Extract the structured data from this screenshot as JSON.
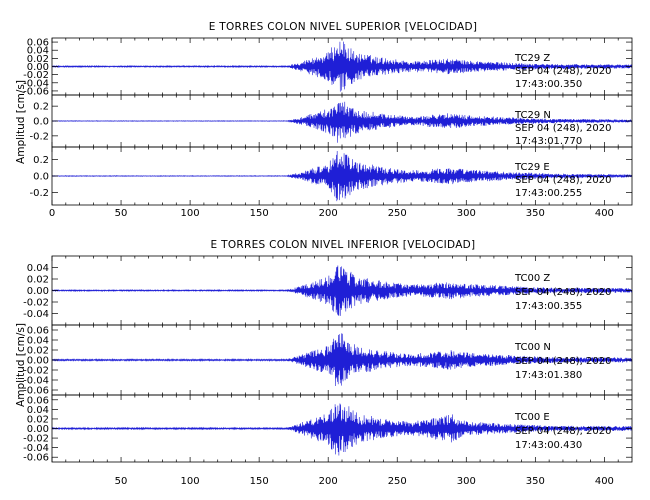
{
  "chart_data": [
    {
      "type": "line",
      "title": "E TORRES COLON NIVEL SUPERIOR [VELOCIDAD]",
      "ylabel": "Amplitud [cm/s]",
      "xlabel": "",
      "xlim": [
        0,
        420
      ],
      "xticks": [
        0,
        50,
        100,
        150,
        200,
        250,
        300,
        350,
        400
      ],
      "grid": false,
      "series_color": "#1f1fd6",
      "panels": [
        {
          "name": "TC29 Z",
          "station": "TC29",
          "component": "Z",
          "date": "SEP 04 (248), 2020",
          "time": "17:43:00.350",
          "ylim": [
            -0.07,
            0.07
          ],
          "yticks": [
            -0.06,
            -0.04,
            -0.02,
            0.0,
            0.02,
            0.04,
            0.06
          ],
          "ytick_labels": [
            "-0.06",
            "-0.04",
            "-0.02",
            "0.00",
            "0.02",
            "0.04",
            "0.06"
          ],
          "envelope": {
            "x": [
              0,
              170,
              180,
              200,
              207,
              212,
              220,
              240,
              260,
              290,
              300,
              330,
              360,
              420
            ],
            "y": [
              0.0015,
              0.0015,
              0.012,
              0.035,
              0.07,
              0.06,
              0.035,
              0.022,
              0.013,
              0.02,
              0.015,
              0.01,
              0.006,
              0.005
            ]
          }
        },
        {
          "name": "TC29 N",
          "station": "TC29",
          "component": "N",
          "date": "SEP 04 (248), 2020",
          "time": "17:43:01.770",
          "ylim": [
            -0.35,
            0.35
          ],
          "yticks": [
            -0.2,
            0.0,
            0.2
          ],
          "ytick_labels": [
            "-0.2",
            "0.0",
            "0.2"
          ],
          "envelope": {
            "x": [
              0,
              170,
              180,
              200,
              207,
              212,
              220,
              240,
              260,
              290,
              300,
              330,
              360,
              420
            ],
            "y": [
              0.004,
              0.004,
              0.05,
              0.17,
              0.3,
              0.26,
              0.17,
              0.1,
              0.06,
              0.11,
              0.08,
              0.05,
              0.03,
              0.02
            ]
          }
        },
        {
          "name": "TC29 E",
          "station": "TC29",
          "component": "E",
          "date": "SEP 04 (248), 2020",
          "time": "17:43:00.255",
          "ylim": [
            -0.35,
            0.35
          ],
          "yticks": [
            -0.2,
            0.0,
            0.2
          ],
          "ytick_labels": [
            "-0.2",
            "0.0",
            "0.2"
          ],
          "envelope": {
            "x": [
              0,
              170,
              180,
              200,
              207,
              212,
              220,
              240,
              260,
              290,
              300,
              330,
              360,
              420
            ],
            "y": [
              0.004,
              0.004,
              0.05,
              0.15,
              0.33,
              0.28,
              0.18,
              0.11,
              0.07,
              0.1,
              0.08,
              0.05,
              0.03,
              0.02
            ]
          }
        }
      ]
    },
    {
      "type": "line",
      "title": "E TORRES COLON NIVEL INFERIOR [VELOCIDAD]",
      "ylabel": "Amplitud [cm/s]",
      "xlabel": "",
      "xlim": [
        0,
        420
      ],
      "xticks": [
        0,
        50,
        100,
        150,
        200,
        250,
        300,
        350,
        400
      ],
      "xtick_labels": [
        "50",
        "100",
        "150",
        "200",
        "250",
        "300",
        "350",
        "400"
      ],
      "grid": false,
      "series_color": "#1f1fd6",
      "panels": [
        {
          "name": "TC00 Z",
          "station": "TC00",
          "component": "Z",
          "date": "SEP 04 (248), 2020",
          "time": "17:43:00.355",
          "ylim": [
            -0.06,
            0.06
          ],
          "yticks": [
            -0.04,
            -0.02,
            0.0,
            0.02,
            0.04
          ],
          "ytick_labels": [
            "-0.04",
            "-0.02",
            "0.00",
            "0.02",
            "0.04"
          ],
          "envelope": {
            "x": [
              0,
              170,
              180,
              200,
              207,
              212,
              220,
              240,
              260,
              290,
              300,
              330,
              360,
              420
            ],
            "y": [
              0.001,
              0.001,
              0.008,
              0.025,
              0.05,
              0.042,
              0.026,
              0.016,
              0.01,
              0.016,
              0.012,
              0.008,
              0.005,
              0.004
            ]
          }
        },
        {
          "name": "TC00 N",
          "station": "TC00",
          "component": "N",
          "date": "SEP 04 (248), 2020",
          "time": "17:43:01.380",
          "ylim": [
            -0.07,
            0.07
          ],
          "yticks": [
            -0.06,
            -0.04,
            -0.02,
            0.0,
            0.02,
            0.04,
            0.06
          ],
          "ytick_labels": [
            "-0.06",
            "-0.04",
            "-0.02",
            "0.00",
            "0.02",
            "0.04",
            "0.06"
          ],
          "envelope": {
            "x": [
              0,
              170,
              180,
              200,
              207,
              212,
              220,
              240,
              260,
              290,
              300,
              330,
              360,
              420
            ],
            "y": [
              0.0015,
              0.0015,
              0.01,
              0.03,
              0.06,
              0.05,
              0.03,
              0.018,
              0.012,
              0.02,
              0.015,
              0.01,
              0.006,
              0.005
            ]
          }
        },
        {
          "name": "TC00 E",
          "station": "TC00",
          "component": "E",
          "date": "SEP 04 (248), 2020",
          "time": "17:43:00.430",
          "ylim": [
            -0.07,
            0.07
          ],
          "yticks": [
            -0.06,
            -0.04,
            -0.02,
            0.0,
            0.02,
            0.04,
            0.06
          ],
          "ytick_labels": [
            "-0.06",
            "-0.04",
            "-0.02",
            "0.00",
            "0.02",
            "0.04",
            "0.06"
          ],
          "envelope": {
            "x": [
              0,
              170,
              180,
              200,
              207,
              212,
              220,
              240,
              260,
              290,
              300,
              330,
              360,
              420
            ],
            "y": [
              0.0015,
              0.0015,
              0.012,
              0.035,
              0.065,
              0.055,
              0.035,
              0.02,
              0.014,
              0.03,
              0.015,
              0.01,
              0.006,
              0.005
            ]
          }
        }
      ]
    }
  ]
}
